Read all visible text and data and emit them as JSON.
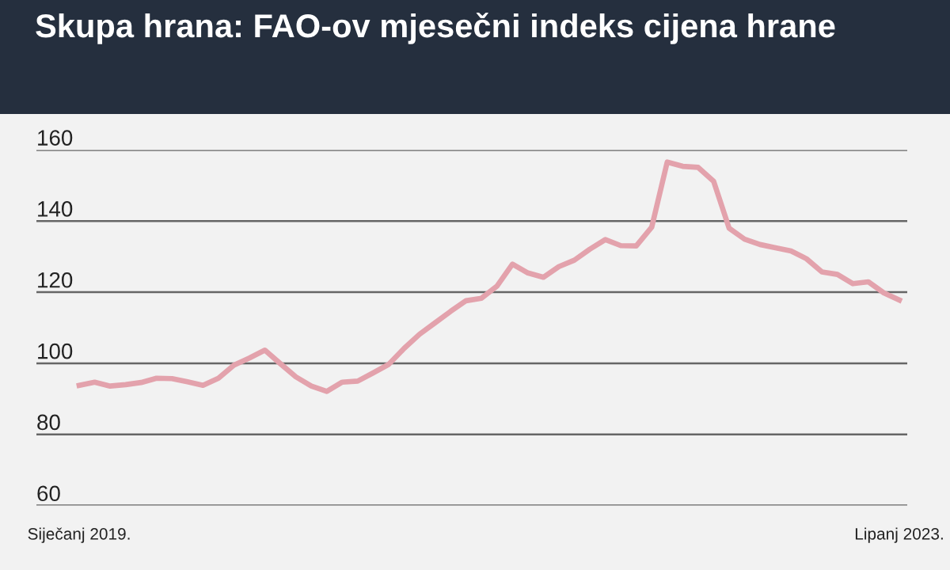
{
  "chart_data": {
    "type": "line",
    "title": "Skupa hrana: FAO-ov mjesečni indeks cijena hrane",
    "categories": [
      "Siječanj 2019.",
      null,
      null,
      null,
      null,
      null,
      null,
      null,
      null,
      null,
      null,
      null,
      null,
      null,
      null,
      null,
      null,
      null,
      null,
      null,
      null,
      null,
      null,
      null,
      null,
      null,
      null,
      null,
      null,
      null,
      null,
      null,
      null,
      null,
      null,
      null,
      null,
      null,
      null,
      null,
      null,
      null,
      null,
      null,
      null,
      null,
      null,
      null,
      null,
      null,
      null,
      null,
      null,
      "Lipanj 2023."
    ],
    "series": [
      {
        "color": "#e3a2ac",
        "values": [
          93.8,
          94.7,
          93.6,
          94.0,
          94.6,
          95.8,
          95.7,
          94.8,
          93.8,
          95.8,
          99.5,
          101.5,
          103.7,
          99.9,
          96.2,
          93.6,
          92.1,
          94.7,
          95.0,
          97.3,
          99.7,
          104.2,
          108.2,
          111.4,
          114.6,
          117.6,
          118.3,
          121.7,
          127.9,
          125.4,
          124.2,
          127.2,
          129.0,
          132.1,
          134.8,
          133.1,
          133.0,
          138.3,
          156.6,
          155.4,
          155.1,
          151.2,
          138.0,
          134.9,
          133.4,
          132.5,
          131.6,
          129.4,
          125.7,
          125.0,
          122.4,
          122.9,
          119.8,
          117.8
        ]
      }
    ],
    "ylim": [
      60,
      160
    ],
    "yticks": [
      60,
      80,
      100,
      120,
      140,
      160
    ],
    "grid": "y",
    "legend": false,
    "marker": "none",
    "line_style": "solid"
  }
}
